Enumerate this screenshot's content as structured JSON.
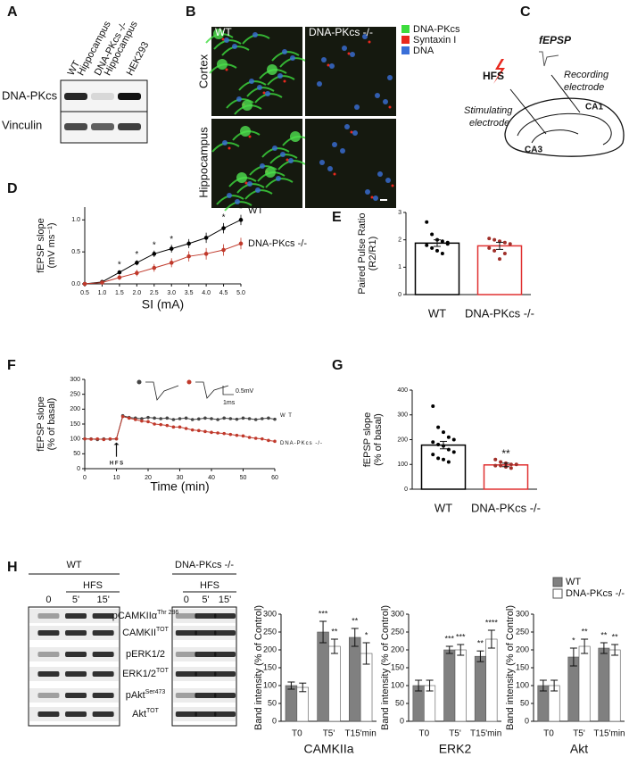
{
  "panel_labels": [
    "A",
    "B",
    "C",
    "D",
    "E",
    "F",
    "G",
    "H"
  ],
  "blot_a": {
    "lanes": [
      [
        "WT",
        "Hippocampus"
      ],
      [
        "DNA-PKcs -/-",
        "Hippocampus"
      ],
      [
        "HEK293"
      ]
    ],
    "rows": [
      "DNA-PKcs",
      "Vinculin"
    ]
  },
  "images_b": {
    "columns": [
      "WT",
      "DNA-PKcs -/-"
    ],
    "rows": [
      "Cortex",
      "Hippocampus"
    ],
    "legend": [
      {
        "label": "DNA-PKcs",
        "color": "#3ddc3d"
      },
      {
        "label": "Syntaxin I",
        "color": "#e8281e"
      },
      {
        "label": "DNA",
        "color": "#3a6fd8"
      }
    ]
  },
  "diagram_c": {
    "stimulus": "HFS",
    "recording": "fEPSP",
    "stimulating": [
      "Stimulating",
      "electrode"
    ],
    "recording_electrode": [
      "Recording",
      "electrode"
    ],
    "regions": [
      "CA1",
      "CA3"
    ]
  },
  "blots_h": {
    "groups": [
      "WT",
      "DNA-PKcs -/-"
    ],
    "treatment": "HFS",
    "lanes": [
      "0",
      "5'",
      "15'"
    ],
    "proteins": [
      {
        "name": "pCAMKIIα",
        "sup": "Thr 286"
      },
      {
        "name": "CAMKII",
        "sup": "TOT"
      },
      {
        "name": "pERK1/2"
      },
      {
        "name": "ERK1/2",
        "sup": "TOT"
      },
      {
        "name": "pAkt",
        "sup": "Ser473"
      },
      {
        "name": "Akt",
        "sup": "TOT"
      }
    ]
  },
  "chart_data": [
    {
      "type": "line",
      "x": [
        0.5,
        1,
        1.5,
        2,
        2.5,
        3,
        3.5,
        4,
        4.5,
        5
      ],
      "xlim": [
        0.5,
        5
      ],
      "xticks": [
        0.5,
        {
          "value": 1,
          "label": "1.0"
        },
        1.5,
        {
          "value": 2,
          "label": "2.0"
        },
        2.5,
        {
          "value": 3,
          "label": "3.0"
        },
        3.5,
        {
          "value": 4,
          "label": "4.0"
        },
        4.5,
        {
          "value": 5,
          "label": "5.0"
        }
      ],
      "ylim": [
        0,
        1.2
      ],
      "yticks": [
        {
          "value": 0,
          "label": "0.0"
        },
        0.5,
        {
          "value": 1,
          "label": "1.0"
        }
      ],
      "x_label": "SI (mA)",
      "y_label": [
        "fEPSP slope",
        "(mV ms⁻¹)"
      ],
      "series": [
        {
          "name": "WT",
          "color": "#000000",
          "values": [
            0,
            0.03,
            0.18,
            0.33,
            0.47,
            0.55,
            0.63,
            0.72,
            0.87,
            1.0
          ],
          "errors": [
            0.01,
            0.02,
            0.03,
            0.04,
            0.05,
            0.06,
            0.07,
            0.08,
            0.08,
            0.08
          ]
        },
        {
          "name": "DNA-PKcs -/-",
          "color": "#c0392b",
          "values": [
            0,
            0.02,
            0.1,
            0.17,
            0.25,
            0.33,
            0.43,
            0.47,
            0.53,
            0.63
          ],
          "errors": [
            0.01,
            0.02,
            0.04,
            0.05,
            0.06,
            0.07,
            0.08,
            0.09,
            0.09,
            0.09
          ]
        }
      ],
      "significance": [
        null,
        null,
        "*",
        "*",
        "*",
        "*",
        null,
        null,
        "*",
        "*"
      ]
    },
    {
      "type": "bar",
      "categories": [
        "WT",
        "DNA-PKcs -/-"
      ],
      "values": [
        1.88,
        1.78
      ],
      "errors": [
        0.12,
        0.13
      ],
      "edge_colors": [
        "#000000",
        "#e03030"
      ],
      "points": [
        [
          2.65,
          2.2,
          2.0,
          1.95,
          1.85,
          1.8,
          1.7,
          1.6,
          1.5,
          1.9
        ],
        [
          2.05,
          2.0,
          1.95,
          1.9,
          1.85,
          1.7,
          1.6,
          1.3,
          1.5
        ]
      ],
      "point_colors": [
        "#000000",
        "#a0302a"
      ],
      "ylim": [
        0,
        3
      ],
      "yticks": [
        0,
        1,
        2,
        3
      ],
      "y_label": [
        "Paired Pulse Ratio",
        "(R2/R1)"
      ]
    },
    {
      "type": "line",
      "x": [
        0,
        2,
        4,
        6,
        8,
        10,
        12,
        14,
        16,
        18,
        20,
        22,
        24,
        26,
        28,
        30,
        32,
        34,
        36,
        38,
        40,
        42,
        44,
        46,
        48,
        50,
        52,
        54,
        56,
        58,
        60
      ],
      "xlim": [
        0,
        60
      ],
      "xticks": [
        0,
        10,
        20,
        30,
        40,
        50,
        60
      ],
      "ylim": [
        0,
        300
      ],
      "yticks": [
        0,
        50,
        100,
        150,
        200,
        250,
        300
      ],
      "x_label": "Time (min)",
      "y_label": [
        "fEPSP slope",
        "(% of basal)"
      ],
      "series": [
        {
          "name": "W T",
          "color": "#444444",
          "values": [
            100,
            100,
            98,
            100,
            99,
            100,
            178,
            172,
            170,
            168,
            172,
            170,
            168,
            170,
            165,
            168,
            170,
            165,
            167,
            170,
            168,
            165,
            170,
            168,
            166,
            170,
            168,
            165,
            168,
            170,
            166
          ]
        },
        {
          "name": "DNA-PKcs -/-",
          "color": "#c0392b",
          "values": [
            100,
            99,
            100,
            98,
            100,
            100,
            175,
            170,
            165,
            160,
            158,
            150,
            148,
            145,
            140,
            140,
            135,
            130,
            128,
            125,
            122,
            120,
            118,
            115,
            112,
            110,
            105,
            102,
            100,
            95,
            92
          ]
        }
      ],
      "annotations": [
        "H F S"
      ],
      "scale_bar": [
        "0.5mV",
        "1ms"
      ]
    },
    {
      "type": "bar",
      "categories": [
        "WT",
        "DNA-PKcs -/-"
      ],
      "values": [
        178,
        98
      ],
      "errors": [
        15,
        7
      ],
      "edge_colors": [
        "#000000",
        "#e03030"
      ],
      "points": [
        [
          335,
          250,
          230,
          210,
          200,
          190,
          180,
          175,
          160,
          150,
          140,
          125,
          120,
          110
        ],
        [
          120,
          110,
          105,
          100,
          100,
          95,
          95,
          90,
          85
        ]
      ],
      "point_colors": [
        "#000000",
        "#a0302a"
      ],
      "significance": [
        null,
        "**"
      ],
      "ylim": [
        0,
        400
      ],
      "yticks": [
        0,
        100,
        200,
        300,
        400
      ],
      "y_label": [
        "fEPSP slope",
        "(% of basal)"
      ]
    },
    {
      "type": "bar",
      "categories": [
        "T0",
        "T5'",
        "T15'min"
      ],
      "ylim": [
        0,
        300
      ],
      "yticks": [
        0,
        50,
        100,
        150,
        200,
        250,
        300
      ],
      "x_label": "CAMKIIa",
      "y_label": [
        "Band intensity (% of Control)"
      ],
      "series": [
        {
          "color": "#808080",
          "values": [
            100,
            250,
            235
          ],
          "errors": [
            10,
            30,
            25
          ],
          "significance": [
            null,
            "***",
            "**"
          ]
        },
        {
          "color": "#ffffff",
          "values": [
            95,
            210,
            190
          ],
          "errors": [
            12,
            20,
            30
          ],
          "significance": [
            null,
            "**",
            "*"
          ]
        }
      ]
    },
    {
      "type": "bar",
      "categories": [
        "T0",
        "T5'",
        "T15'min"
      ],
      "ylim": [
        0,
        300
      ],
      "yticks": [
        0,
        50,
        100,
        150,
        200,
        250,
        300
      ],
      "x_label": "ERK2",
      "y_label": [
        "Band intensity (% of Control)"
      ],
      "series": [
        {
          "color": "#808080",
          "values": [
            100,
            200,
            182
          ],
          "errors": [
            15,
            10,
            15
          ],
          "significance": [
            null,
            "***",
            "**"
          ]
        },
        {
          "color": "#ffffff",
          "values": [
            100,
            200,
            230
          ],
          "errors": [
            15,
            15,
            25
          ],
          "significance": [
            null,
            "***",
            "****"
          ]
        }
      ]
    },
    {
      "type": "bar",
      "categories": [
        "T0",
        "T5'",
        "T15'min"
      ],
      "ylim": [
        0,
        300
      ],
      "yticks": [
        0,
        50,
        100,
        150,
        200,
        250,
        300
      ],
      "x_label": "Akt",
      "y_label": [
        "Band intensity (% of Control)"
      ],
      "series": [
        {
          "name": "WT",
          "color": "#808080",
          "values": [
            100,
            180,
            205
          ],
          "errors": [
            15,
            25,
            15
          ],
          "significance": [
            null,
            "*",
            "**"
          ]
        },
        {
          "name": "DNA-PKcs -/-",
          "color": "#ffffff",
          "values": [
            100,
            210,
            200
          ],
          "errors": [
            15,
            20,
            15
          ],
          "significance": [
            null,
            "**",
            "**"
          ]
        }
      ]
    }
  ]
}
